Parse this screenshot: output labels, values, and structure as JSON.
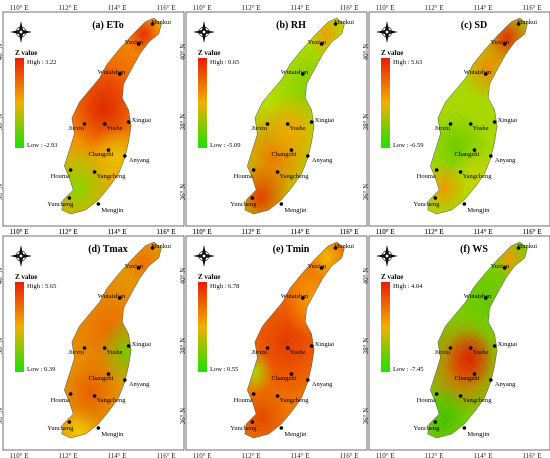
{
  "lon_labels": [
    "110° E",
    "112° E",
    "114° E",
    "116° E"
  ],
  "lat_labels": [
    "40° N",
    "38° N",
    "36° N"
  ],
  "legend_title": "Z value",
  "panels": [
    {
      "title": "(a) ETo",
      "high": "High : 3.22",
      "low": "Low : -2.93",
      "scheme": "eto"
    },
    {
      "title": "(b) RH",
      "high": "High : 0.65",
      "low": "Low : -5.09",
      "scheme": "rh"
    },
    {
      "title": "(c) SD",
      "high": "High : 5.63",
      "low": "Low : -6.59",
      "scheme": "sd"
    },
    {
      "title": "(d) Tmax",
      "high": "High : 5.65",
      "low": "Low : 0.39",
      "scheme": "tmax"
    },
    {
      "title": "(e) Tmin",
      "high": "High : 6.78",
      "low": "Low : 0.55",
      "scheme": "tmin"
    },
    {
      "title": "(f) WS",
      "high": "High : 4.04",
      "low": "Low : -7.45",
      "scheme": "ws"
    }
  ],
  "stations": [
    "Hunkui",
    "Yuxian",
    "Wutaishan",
    "Jiexiu",
    "Yushe",
    "Xingtai",
    "Changzhi",
    "Anyang",
    "Houma",
    "Yangcheng",
    "Yuncheng",
    "Mengjin"
  ]
}
